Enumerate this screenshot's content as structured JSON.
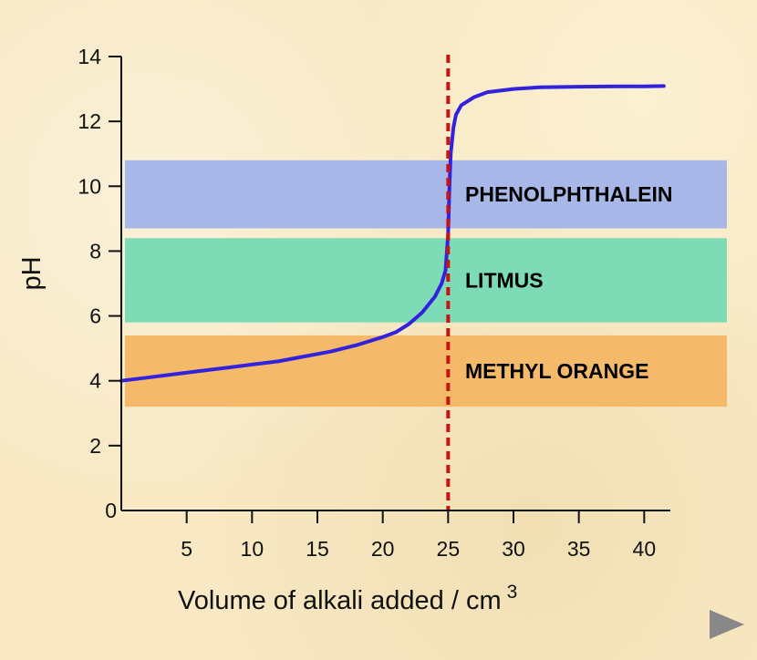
{
  "chart_data": {
    "type": "line",
    "xlabel": "Volume of alkali added / cm",
    "xlabel_superscript": "3",
    "ylabel": "pH",
    "xlim": [
      0,
      42
    ],
    "ylim": [
      0,
      14
    ],
    "x_ticks": [
      5,
      10,
      15,
      20,
      25,
      30,
      35,
      40
    ],
    "y_ticks": [
      0,
      2,
      4,
      6,
      8,
      10,
      12,
      14
    ],
    "grid": false,
    "equivalence_volume": 25,
    "bands": [
      {
        "label": "PHENOLPHTHALEIN",
        "ph_range": [
          8.7,
          10.8
        ],
        "color": "#a7b8e8"
      },
      {
        "label": "LITMUS",
        "ph_range": [
          5.8,
          8.4
        ],
        "color": "#7ddcb6"
      },
      {
        "label": "METHYL ORANGE",
        "ph_range": [
          3.2,
          5.4
        ],
        "color": "#f5b96a"
      }
    ],
    "series": [
      {
        "x": [
          0,
          2,
          4,
          6,
          8,
          10,
          12,
          14,
          16,
          18,
          20,
          21,
          22,
          23,
          24,
          24.5,
          24.8,
          25,
          25.1,
          25.2,
          25.4,
          25.6,
          26,
          27,
          28,
          30,
          32,
          35,
          38,
          40,
          41.5
        ],
        "y": [
          4.0,
          4.1,
          4.2,
          4.3,
          4.4,
          4.5,
          4.6,
          4.75,
          4.9,
          5.1,
          5.35,
          5.5,
          5.75,
          6.1,
          6.6,
          7.0,
          7.4,
          8.5,
          10.0,
          11.0,
          11.8,
          12.2,
          12.5,
          12.75,
          12.9,
          13.0,
          13.05,
          13.07,
          13.08,
          13.08,
          13.09
        ],
        "color": "#3322dd"
      }
    ],
    "equivalence_line_color": "#cc1111"
  },
  "controls": {
    "next_glyph": "▶"
  }
}
